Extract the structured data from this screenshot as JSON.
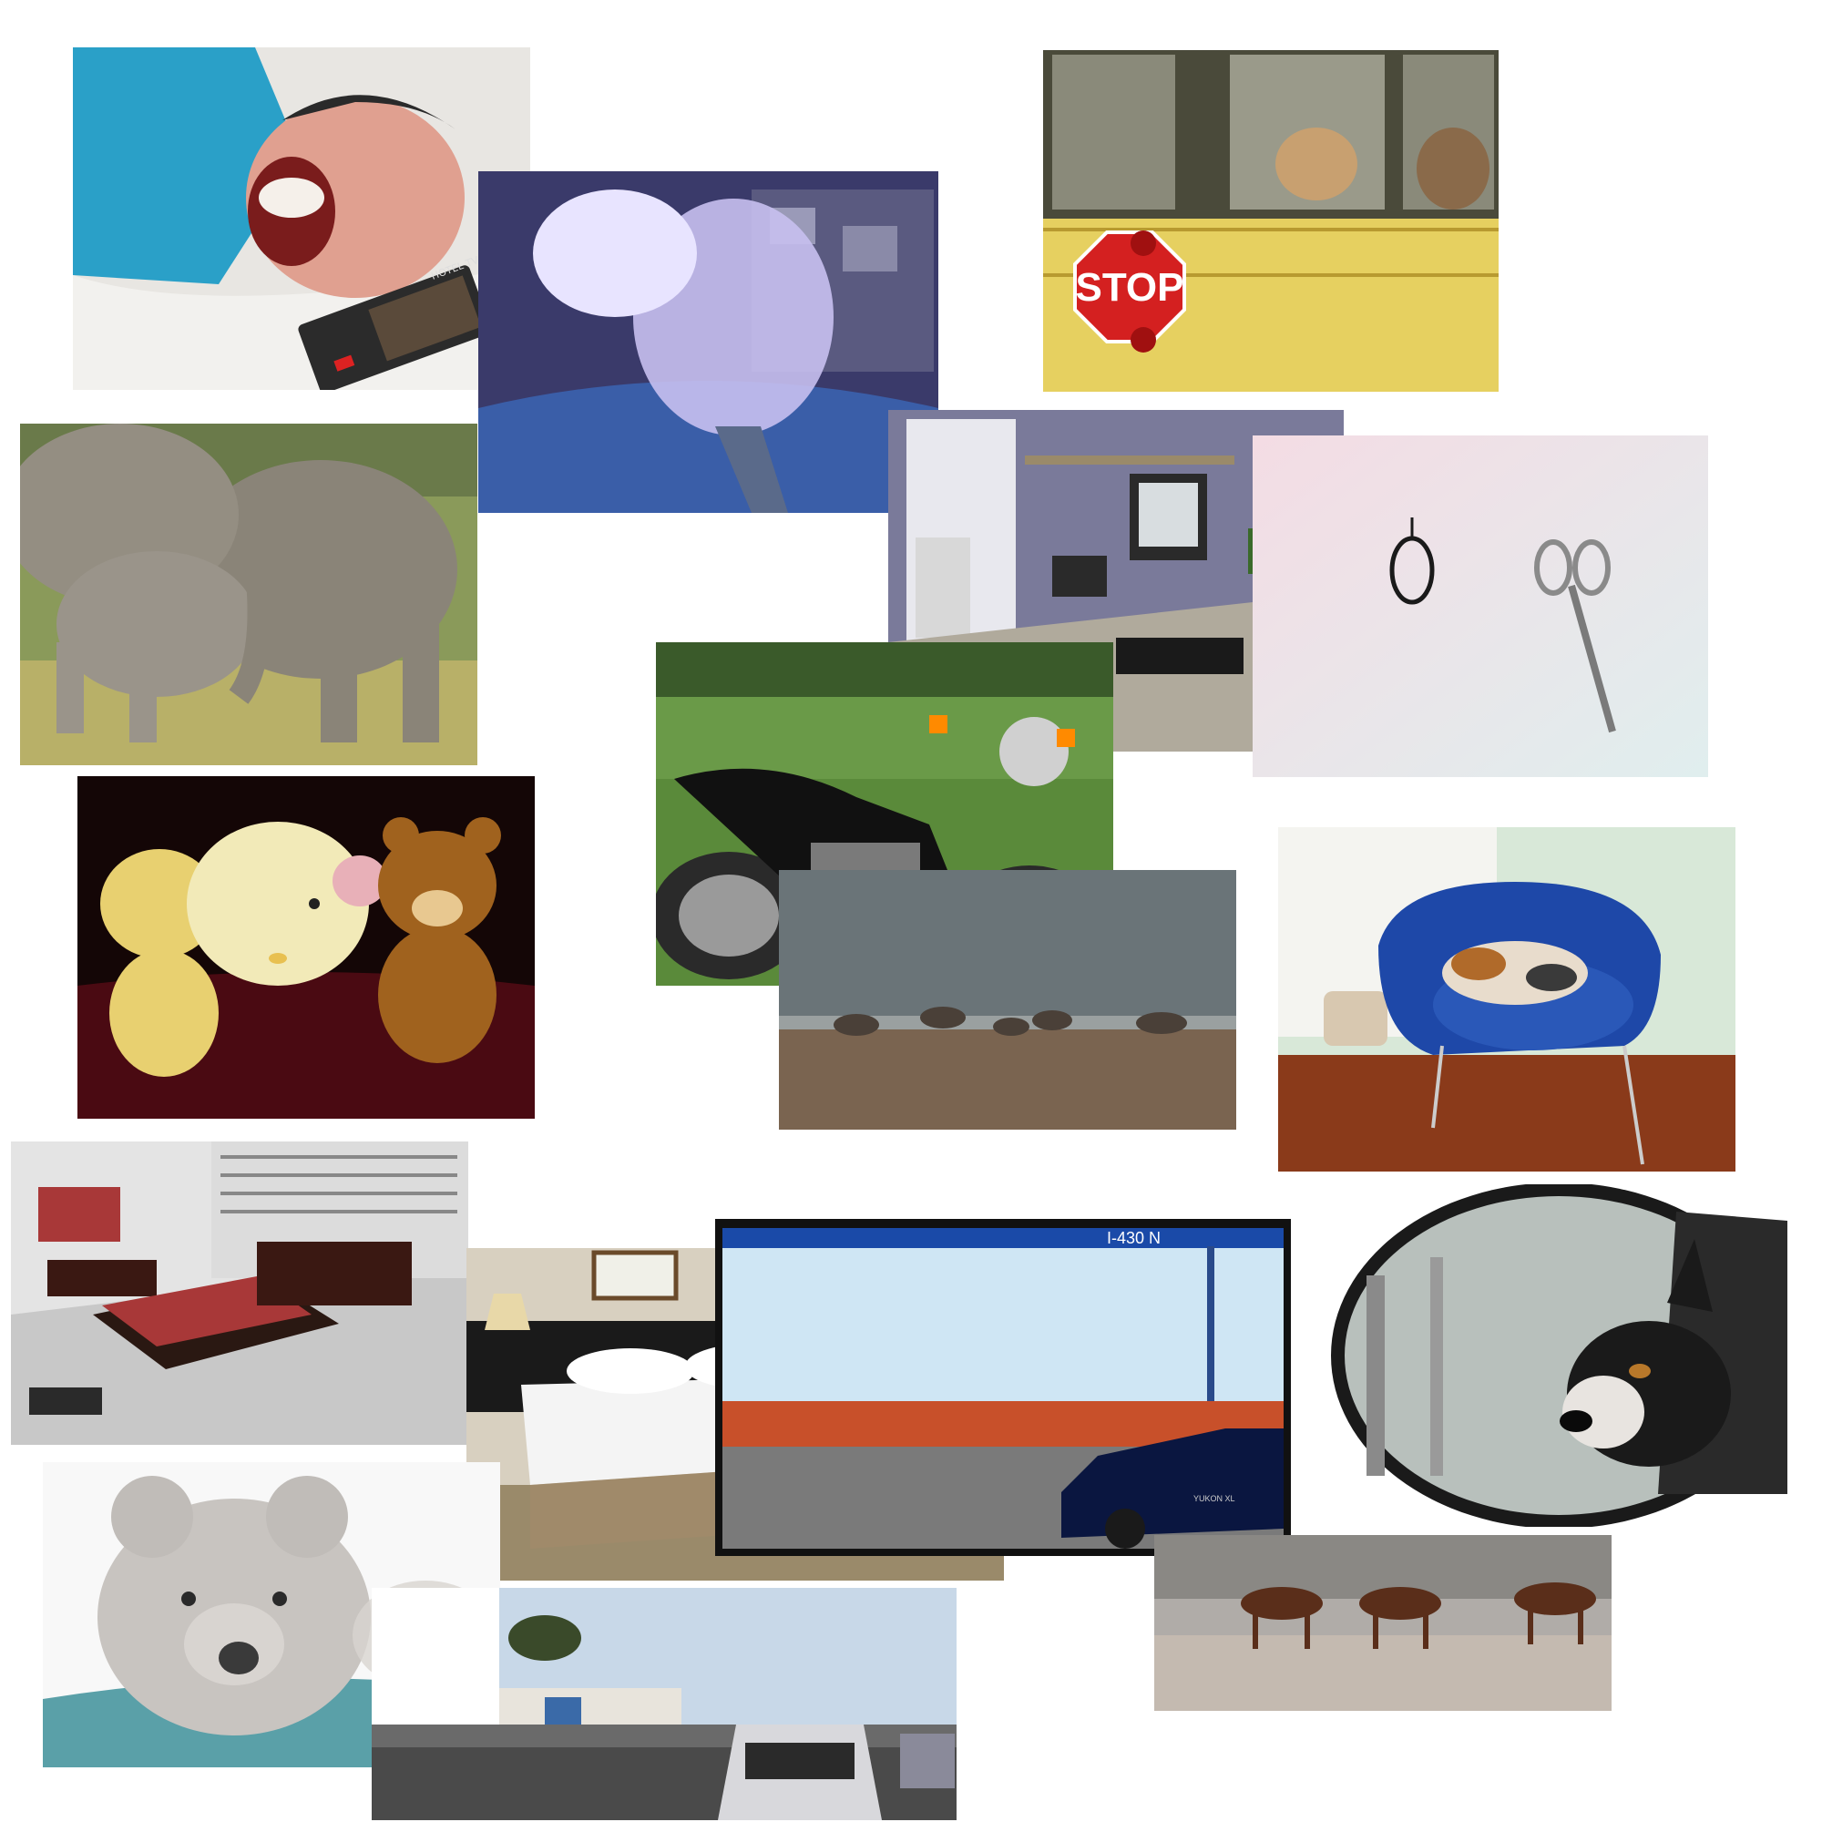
{
  "collage": {
    "photos": [
      {
        "id": "man-laughing",
        "subject": "man laughing on bed holding remote",
        "remote_text": "HOTEL TV"
      },
      {
        "id": "man-drinking",
        "subject": "man in shirt and tie drinking from jar, purple tint"
      },
      {
        "id": "school-bus",
        "subject": "school bus with dogs in windows",
        "sign_text": "STOP"
      },
      {
        "id": "elephants",
        "subject": "adult and baby elephants on grass"
      },
      {
        "id": "office-cubicle",
        "subject": "office cubicle with CRT computer and phone"
      },
      {
        "id": "scissors",
        "subject": "scissors and hair tie on wall"
      },
      {
        "id": "motorcycle",
        "subject": "black Honda motorcycle on lawn"
      },
      {
        "id": "plush-toys",
        "subject": "teddy bears and Hello Kitty plush toys"
      },
      {
        "id": "shorebirds",
        "subject": "shorebirds on pebble beach"
      },
      {
        "id": "cat-chair",
        "subject": "calico cat sleeping in blue armchair"
      },
      {
        "id": "modern-bedroom",
        "subject": "modern bedroom with red bed"
      },
      {
        "id": "hotel-room",
        "subject": "hotel room with white beds and curtains"
      },
      {
        "id": "intersection",
        "subject": "traffic intersection with pickup truck",
        "sign_text": "I-430 N",
        "truck_text": "YUKON XL"
      },
      {
        "id": "dog-mirror",
        "subject": "dog leaning out of car window in side mirror"
      },
      {
        "id": "teddy-bear",
        "subject": "gray teddy bear lying on blanket"
      },
      {
        "id": "horses-beach",
        "subject": "horses walking on beach"
      },
      {
        "id": "street-taxi",
        "subject": "street with taxi and kites in sky"
      }
    ]
  }
}
